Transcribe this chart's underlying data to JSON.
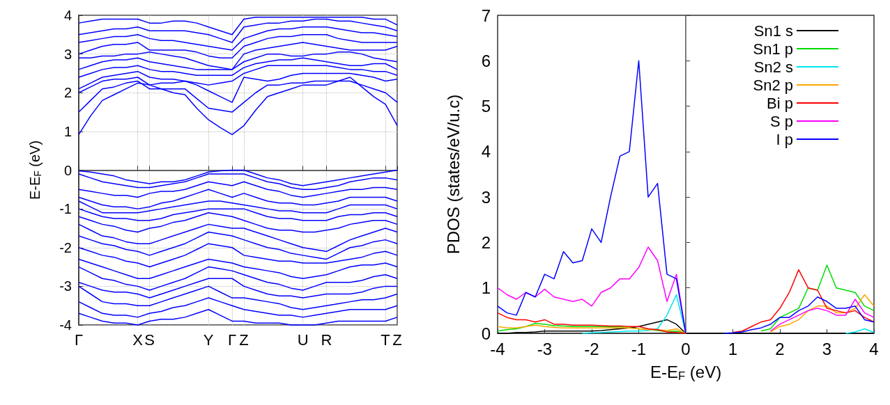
{
  "chart_data": [
    {
      "type": "line",
      "ylabel": "E-E$_{F}$ (eV)",
      "ylim": [
        -4,
        4
      ],
      "yticks": [
        -4,
        -3,
        -2,
        -1,
        0,
        1,
        2,
        3,
        4
      ],
      "categories": [
        "Γ",
        null,
        null,
        null,
        null,
        "X",
        "S",
        null,
        null,
        null,
        null,
        "Y",
        null,
        "Γ",
        "Z",
        null,
        null,
        null,
        null,
        "U",
        null,
        "R",
        null,
        null,
        null,
        null,
        "T",
        "Z"
      ],
      "grid": true,
      "legend": false,
      "marker": "none",
      "series": [
        {
          "color": "#0000ff",
          "values": [
            0.92,
            1.4,
            1.8,
            1.95,
            2.1,
            2.25,
            2.2,
            2.1,
            2.0,
            1.95,
            1.6,
            1.3,
            1.1,
            0.92,
            1.15,
            1.55,
            1.9,
            2.0,
            2.1,
            2.2,
            2.2,
            2.2,
            2.3,
            2.4,
            2.15,
            1.9,
            1.7,
            1.15
          ]
        },
        {
          "color": "#0000ff",
          "values": [
            1.5,
            1.8,
            2.1,
            2.15,
            2.25,
            2.3,
            2.1,
            2.1,
            2.1,
            2.1,
            1.85,
            1.6,
            1.55,
            1.5,
            1.75,
            2.0,
            2.2,
            2.2,
            2.25,
            2.25,
            2.3,
            2.3,
            2.3,
            2.3,
            2.2,
            2.1,
            2.0,
            1.75
          ]
        },
        {
          "color": "#0000ff",
          "values": [
            2.0,
            2.15,
            2.3,
            2.35,
            2.35,
            2.4,
            2.2,
            2.25,
            2.25,
            2.3,
            2.2,
            2.05,
            1.9,
            1.75,
            2.4,
            2.35,
            2.3,
            2.35,
            2.45,
            2.5,
            2.5,
            2.5,
            2.5,
            2.5,
            2.45,
            2.4,
            2.3,
            2.35
          ]
        },
        {
          "color": "#0000ff",
          "values": [
            2.1,
            2.25,
            2.4,
            2.45,
            2.5,
            2.55,
            2.4,
            2.35,
            2.35,
            2.3,
            2.25,
            2.2,
            2.25,
            2.3,
            2.5,
            2.6,
            2.7,
            2.7,
            2.7,
            2.7,
            2.7,
            2.7,
            2.65,
            2.6,
            2.6,
            2.55,
            2.55,
            2.45
          ]
        },
        {
          "color": "#0000ff",
          "values": [
            2.4,
            2.5,
            2.6,
            2.65,
            2.65,
            2.7,
            2.6,
            2.55,
            2.55,
            2.5,
            2.45,
            2.45,
            2.45,
            2.45,
            2.65,
            2.75,
            2.8,
            2.85,
            2.85,
            2.9,
            2.85,
            2.8,
            2.75,
            2.7,
            2.7,
            2.75,
            2.75,
            2.6
          ]
        },
        {
          "color": "#0000ff",
          "values": [
            2.6,
            2.7,
            2.8,
            2.85,
            2.85,
            2.9,
            2.8,
            2.75,
            2.7,
            2.65,
            2.6,
            2.6,
            2.6,
            2.6,
            2.8,
            2.9,
            3.0,
            3.0,
            2.95,
            2.95,
            3.0,
            3.0,
            3.05,
            3.05,
            3.0,
            2.9,
            2.85,
            2.8
          ]
        },
        {
          "color": "#0000ff",
          "values": [
            2.9,
            2.9,
            2.95,
            2.95,
            3.0,
            3.0,
            3.05,
            3.0,
            2.95,
            2.9,
            2.8,
            2.7,
            2.65,
            2.6,
            3.0,
            3.1,
            3.15,
            3.2,
            3.25,
            3.3,
            3.25,
            3.2,
            3.15,
            3.1,
            3.1,
            3.1,
            3.1,
            3.2
          ]
        },
        {
          "color": "#0000ff",
          "values": [
            3.0,
            3.1,
            3.2,
            3.25,
            3.25,
            3.3,
            3.1,
            3.1,
            3.1,
            3.1,
            3.05,
            2.95,
            2.9,
            2.9,
            3.2,
            3.3,
            3.4,
            3.45,
            3.45,
            3.5,
            3.5,
            3.5,
            3.4,
            3.35,
            3.3,
            3.3,
            3.3,
            3.3
          ]
        },
        {
          "color": "#0000ff",
          "values": [
            3.3,
            3.35,
            3.4,
            3.45,
            3.45,
            3.5,
            3.4,
            3.35,
            3.35,
            3.3,
            3.25,
            3.2,
            3.15,
            3.1,
            3.4,
            3.5,
            3.6,
            3.65,
            3.65,
            3.7,
            3.7,
            3.7,
            3.65,
            3.6,
            3.55,
            3.55,
            3.5,
            3.45
          ]
        },
        {
          "color": "#0000ff",
          "values": [
            3.5,
            3.55,
            3.6,
            3.65,
            3.65,
            3.7,
            3.6,
            3.6,
            3.6,
            3.6,
            3.55,
            3.5,
            3.4,
            3.3,
            3.7,
            3.75,
            3.8,
            3.8,
            3.85,
            3.85,
            3.9,
            3.9,
            3.85,
            3.85,
            3.8,
            3.75,
            3.7,
            3.6
          ]
        },
        {
          "color": "#0000ff",
          "values": [
            3.8,
            3.85,
            3.9,
            3.9,
            3.9,
            3.9,
            3.8,
            3.8,
            3.85,
            3.85,
            3.8,
            3.7,
            3.6,
            3.5,
            3.9,
            3.95,
            3.95,
            3.95,
            3.95,
            3.95,
            3.95,
            3.95,
            3.95,
            3.95,
            3.95,
            3.9,
            3.9,
            3.75
          ]
        },
        {
          "color": "#0000ff",
          "values": [
            -0.02,
            -0.05,
            -0.1,
            -0.15,
            -0.25,
            -0.3,
            -0.35,
            -0.3,
            -0.3,
            -0.25,
            -0.15,
            -0.05,
            -0.02,
            0,
            0,
            -0.1,
            -0.2,
            -0.25,
            -0.35,
            -0.4,
            -0.35,
            -0.3,
            -0.25,
            -0.2,
            -0.15,
            -0.1,
            -0.05,
            0
          ]
        },
        {
          "color": "#0000ff",
          "values": [
            -0.1,
            -0.2,
            -0.3,
            -0.35,
            -0.4,
            -0.45,
            -0.45,
            -0.4,
            -0.35,
            -0.3,
            -0.2,
            -0.1,
            -0.1,
            -0.1,
            -0.1,
            -0.2,
            -0.3,
            -0.35,
            -0.45,
            -0.5,
            -0.5,
            -0.45,
            -0.4,
            -0.3,
            -0.25,
            -0.2,
            -0.2,
            -0.25
          ]
        },
        {
          "color": "#0000ff",
          "values": [
            -0.5,
            -0.55,
            -0.6,
            -0.65,
            -0.65,
            -0.7,
            -0.6,
            -0.55,
            -0.55,
            -0.5,
            -0.4,
            -0.3,
            -0.35,
            -0.4,
            -0.3,
            -0.4,
            -0.5,
            -0.55,
            -0.65,
            -0.7,
            -0.65,
            -0.6,
            -0.55,
            -0.5,
            -0.5,
            -0.45,
            -0.45,
            -0.5
          ]
        },
        {
          "color": "#0000ff",
          "values": [
            -0.7,
            -0.8,
            -0.9,
            -0.95,
            -0.95,
            -1.0,
            -0.95,
            -0.85,
            -0.8,
            -0.7,
            -0.6,
            -0.5,
            -0.6,
            -0.7,
            -0.6,
            -0.7,
            -0.8,
            -0.85,
            -0.85,
            -0.9,
            -0.9,
            -0.85,
            -0.8,
            -0.7,
            -0.7,
            -0.7,
            -0.7,
            -0.8
          ]
        },
        {
          "color": "#0000ff",
          "values": [
            -0.8,
            -0.95,
            -1.1,
            -1.1,
            -1.1,
            -1.1,
            -1.05,
            -1.0,
            -0.95,
            -0.9,
            -0.85,
            -0.8,
            -0.8,
            -0.85,
            -0.9,
            -0.95,
            -1.0,
            -1.05,
            -1.05,
            -1.1,
            -1.1,
            -1.1,
            -1.0,
            -0.9,
            -0.9,
            -0.9,
            -0.9,
            -1.0
          ]
        },
        {
          "color": "#0000ff",
          "values": [
            -1.0,
            -1.1,
            -1.2,
            -1.25,
            -1.25,
            -1.3,
            -1.3,
            -1.25,
            -1.15,
            -1.1,
            -1.05,
            -1.0,
            -1.0,
            -1.0,
            -1.0,
            -1.1,
            -1.2,
            -1.25,
            -1.25,
            -1.3,
            -1.3,
            -1.3,
            -1.2,
            -1.15,
            -1.15,
            -1.1,
            -1.1,
            -1.2
          ]
        },
        {
          "color": "#0000ff",
          "values": [
            -1.2,
            -1.3,
            -1.4,
            -1.45,
            -1.55,
            -1.6,
            -1.5,
            -1.45,
            -1.35,
            -1.3,
            -1.2,
            -1.1,
            -1.15,
            -1.2,
            -1.3,
            -1.4,
            -1.5,
            -1.55,
            -1.55,
            -1.6,
            -1.6,
            -1.55,
            -1.5,
            -1.4,
            -1.35,
            -1.3,
            -1.3,
            -1.4
          ]
        },
        {
          "color": "#0000ff",
          "values": [
            -1.4,
            -1.55,
            -1.7,
            -1.75,
            -1.85,
            -1.9,
            -1.9,
            -1.8,
            -1.7,
            -1.6,
            -1.5,
            -1.4,
            -1.45,
            -1.5,
            -1.5,
            -1.6,
            -1.7,
            -1.8,
            -1.9,
            -2.0,
            -2.05,
            -2.1,
            -1.95,
            -1.8,
            -1.7,
            -1.6,
            -1.5,
            -1.6
          ]
        },
        {
          "color": "#0000ff",
          "values": [
            -1.7,
            -1.8,
            -1.9,
            -1.95,
            -2.05,
            -2.1,
            -2.2,
            -2.1,
            -2.0,
            -1.9,
            -1.75,
            -1.6,
            -1.65,
            -1.7,
            -1.8,
            -1.9,
            -2.0,
            -2.05,
            -2.15,
            -2.2,
            -2.25,
            -2.3,
            -2.15,
            -2.0,
            -1.95,
            -1.85,
            -1.8,
            -1.9
          ]
        },
        {
          "color": "#0000ff",
          "values": [
            -2.0,
            -2.1,
            -2.2,
            -2.25,
            -2.35,
            -2.4,
            -2.5,
            -2.4,
            -2.3,
            -2.2,
            -2.05,
            -1.9,
            -1.95,
            -2.0,
            -2.2,
            -2.25,
            -2.3,
            -2.35,
            -2.35,
            -2.4,
            -2.4,
            -2.4,
            -2.35,
            -2.3,
            -2.25,
            -2.15,
            -2.1,
            -2.2
          ]
        },
        {
          "color": "#0000ff",
          "values": [
            -2.3,
            -2.4,
            -2.5,
            -2.6,
            -2.7,
            -2.8,
            -2.8,
            -2.7,
            -2.6,
            -2.5,
            -2.4,
            -2.3,
            -2.35,
            -2.4,
            -2.5,
            -2.55,
            -2.6,
            -2.65,
            -2.75,
            -2.8,
            -2.75,
            -2.7,
            -2.6,
            -2.5,
            -2.45,
            -2.45,
            -2.4,
            -2.5
          ]
        },
        {
          "color": "#0000ff",
          "values": [
            -2.5,
            -2.65,
            -2.8,
            -2.85,
            -2.95,
            -3.0,
            -3.1,
            -3.0,
            -2.9,
            -2.8,
            -2.65,
            -2.5,
            -2.55,
            -2.6,
            -2.7,
            -2.8,
            -2.9,
            -2.95,
            -3.05,
            -3.1,
            -3.0,
            -2.9,
            -2.9,
            -2.9,
            -2.85,
            -2.75,
            -2.7,
            -2.8
          ]
        },
        {
          "color": "#0000ff",
          "values": [
            -2.9,
            -3.0,
            -3.1,
            -3.15,
            -3.15,
            -3.2,
            -3.3,
            -3.2,
            -3.1,
            -3.0,
            -2.9,
            -2.8,
            -2.8,
            -2.8,
            -3.0,
            -3.1,
            -3.2,
            -3.25,
            -3.25,
            -3.3,
            -3.25,
            -3.2,
            -3.2,
            -3.2,
            -3.15,
            -3.05,
            -3.0,
            -3.0
          ]
        },
        {
          "color": "#0000ff",
          "values": [
            -3.0,
            -3.2,
            -3.4,
            -3.45,
            -3.45,
            -3.5,
            -3.5,
            -3.4,
            -3.3,
            -3.2,
            -3.1,
            -3.0,
            -3.15,
            -3.3,
            -3.3,
            -3.35,
            -3.4,
            -3.45,
            -3.55,
            -3.6,
            -3.55,
            -3.5,
            -3.45,
            -3.4,
            -3.35,
            -3.35,
            -3.3,
            -3.2
          ]
        },
        {
          "color": "#0000ff",
          "values": [
            -3.4,
            -3.55,
            -3.7,
            -3.75,
            -3.75,
            -3.8,
            -3.7,
            -3.65,
            -3.55,
            -3.5,
            -3.4,
            -3.3,
            -3.4,
            -3.5,
            -3.6,
            -3.65,
            -3.7,
            -3.75,
            -3.75,
            -3.8,
            -3.75,
            -3.7,
            -3.65,
            -3.6,
            -3.6,
            -3.6,
            -3.6,
            -3.5
          ]
        },
        {
          "color": "#0000ff",
          "values": [
            -3.7,
            -3.8,
            -3.9,
            -3.95,
            -3.95,
            -4.0,
            -3.9,
            -3.85,
            -3.85,
            -3.8,
            -3.7,
            -3.6,
            -3.75,
            -3.9,
            -3.9,
            -3.95,
            -3.95,
            -3.95,
            -4.0,
            -4.0,
            -4.0,
            -3.95,
            -3.9,
            -3.9,
            -3.9,
            -3.9,
            -3.9,
            -3.8
          ]
        }
      ]
    },
    {
      "type": "line",
      "xlabel": "E-E$_{F}$ (eV)",
      "ylabel": "PDOS (states/eV/u.c)",
      "xlim": [
        -4,
        4
      ],
      "ylim": [
        0,
        7
      ],
      "xticks": [
        -4,
        -3,
        -2,
        -1,
        0,
        1,
        2,
        3,
        4
      ],
      "yticks": [
        0,
        1,
        2,
        3,
        4,
        5,
        6,
        7
      ],
      "grid": false,
      "legend": "top right",
      "marker": "none",
      "ref_lines": [
        {
          "axis": "x",
          "value": 0,
          "color": "#bbbbbb",
          "line_style": "dotted"
        }
      ],
      "x": [
        -4,
        -3.8,
        -3.6,
        -3.4,
        -3.2,
        -3,
        -2.8,
        -2.6,
        -2.4,
        -2.2,
        -2,
        -1.8,
        -1.6,
        -1.4,
        -1.2,
        -1,
        -0.8,
        -0.6,
        -0.4,
        -0.2,
        0,
        0.2,
        0.4,
        0.6,
        0.8,
        1,
        1.2,
        1.4,
        1.6,
        1.8,
        2,
        2.2,
        2.4,
        2.6,
        2.8,
        3,
        3.2,
        3.4,
        3.6,
        3.8,
        4
      ],
      "series": [
        {
          "name": "Sn1 s",
          "color": "#000000",
          "values": [
            0,
            0,
            0.02,
            0.02,
            0.03,
            0.05,
            0.05,
            0.05,
            0.05,
            0.05,
            0.05,
            0.06,
            0.08,
            0.1,
            0.12,
            0.15,
            0.2,
            0.25,
            0.3,
            0.2,
            0,
            0,
            0,
            0,
            0,
            0,
            0,
            0,
            0,
            0,
            0,
            0,
            0,
            0,
            0,
            0,
            0,
            0,
            0,
            0,
            0
          ]
        },
        {
          "name": "Sn1 p",
          "color": "#00dd00",
          "values": [
            0.05,
            0.08,
            0.1,
            0.15,
            0.22,
            0.2,
            0.17,
            0.16,
            0.15,
            0.15,
            0.15,
            0.15,
            0.14,
            0.14,
            0.12,
            0.1,
            0.08,
            0.06,
            0.04,
            0.05,
            0,
            null,
            null,
            null,
            null,
            null,
            null,
            null,
            0.05,
            0.1,
            0.35,
            0.45,
            0.55,
            1.0,
            0.95,
            1.5,
            1.0,
            0.95,
            0.9,
            0.6,
            0.5
          ]
        },
        {
          "name": "Sn2 s",
          "color": "#00e5ee",
          "values": [
            null,
            null,
            null,
            null,
            null,
            null,
            null,
            null,
            null,
            0,
            0.01,
            0.02,
            0.03,
            0.04,
            0.05,
            0.05,
            0.06,
            0.1,
            0.4,
            0.85,
            0,
            null,
            null,
            null,
            null,
            null,
            null,
            null,
            null,
            null,
            null,
            null,
            null,
            null,
            null,
            null,
            null,
            0,
            0.03,
            0.1,
            0.02
          ]
        },
        {
          "name": "Sn2 p",
          "color": "#ffa500",
          "values": [
            0.15,
            0.12,
            0.12,
            0.15,
            0.18,
            0.15,
            0.13,
            0.12,
            0.12,
            0.12,
            0.12,
            0.12,
            0.12,
            0.12,
            0.12,
            0.1,
            0.08,
            0.08,
            0.06,
            0.1,
            0,
            null,
            null,
            null,
            null,
            null,
            null,
            null,
            null,
            0.03,
            0.15,
            0.2,
            0.3,
            0.5,
            0.6,
            0.6,
            0.45,
            0.45,
            0.55,
            0.85,
            0.6
          ]
        },
        {
          "name": "Bi p",
          "color": "#ff0000",
          "values": [
            0.45,
            0.35,
            0.3,
            0.3,
            0.25,
            0.3,
            0.2,
            0.2,
            0.18,
            0.18,
            0.18,
            0.17,
            0.16,
            0.16,
            0.15,
            0.15,
            0.1,
            0.08,
            0.03,
            0.02,
            0,
            null,
            null,
            null,
            null,
            0.02,
            0.05,
            0.15,
            0.25,
            0.3,
            0.55,
            0.9,
            1.4,
            1.0,
            0.95,
            0.55,
            0.5,
            0.45,
            0.5,
            0.35,
            0.25
          ]
        },
        {
          "name": "S p",
          "color": "#ff00ff",
          "values": [
            1.0,
            0.85,
            0.75,
            0.9,
            0.8,
            0.97,
            0.8,
            0.75,
            0.7,
            0.75,
            0.6,
            0.9,
            1.0,
            1.2,
            1.2,
            1.45,
            1.9,
            1.6,
            0.7,
            1.3,
            0,
            null,
            null,
            null,
            null,
            null,
            null,
            null,
            null,
            0.05,
            0.2,
            0.3,
            0.4,
            0.5,
            0.55,
            0.5,
            0.4,
            0.4,
            0.75,
            0.45,
            0.35
          ]
        },
        {
          "name": "I p",
          "color": "#0000ff",
          "values": [
            0.6,
            0.45,
            0.4,
            0.9,
            0.8,
            1.3,
            1.2,
            1.8,
            1.55,
            1.6,
            2.3,
            2.0,
            3.0,
            3.9,
            4.0,
            6.0,
            3.0,
            3.3,
            1.3,
            1.2,
            0,
            null,
            null,
            null,
            0,
            0.01,
            0.03,
            0.08,
            0.12,
            0.2,
            0.35,
            0.35,
            0.5,
            0.6,
            0.8,
            0.7,
            0.55,
            0.55,
            0.6,
            0.3,
            0.25
          ]
        }
      ]
    }
  ]
}
